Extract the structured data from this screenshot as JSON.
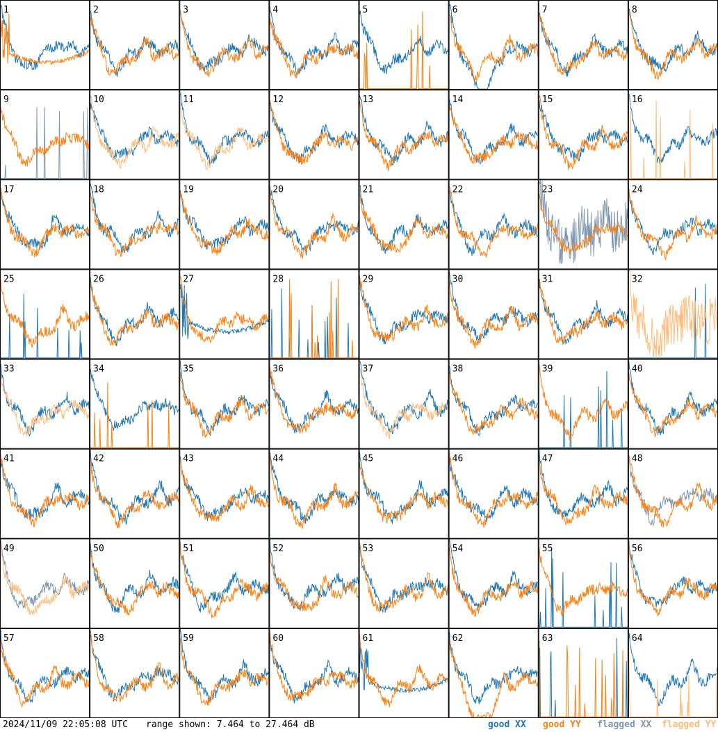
{
  "footer": {
    "timestamp": "2024/11/09 22:05:08 UTC",
    "range_text": "range shown: 7.464 to 27.464 dB",
    "legend": {
      "good_xx": "good XX",
      "good_yy": "good YY",
      "flagged_xx": "flagged XX",
      "flagged_yy": "flagged YY"
    }
  },
  "chart_data": {
    "type": "line",
    "title": "",
    "xlabel": "",
    "ylabel": "",
    "ylim": [
      7.464,
      27.464
    ],
    "grid": false,
    "rows": 8,
    "cols": 8,
    "colors": {
      "good_xx": "#1f77b4",
      "good_yy": "#ff7f0e",
      "flagged_xx": "#7f96b0",
      "flagged_yy": "#ffbb78"
    },
    "panels": [
      {
        "label": "1",
        "xx": "good",
        "yy": "good",
        "yy_mode": "odd"
      },
      {
        "label": "2",
        "xx": "good",
        "yy": "good"
      },
      {
        "label": "3",
        "xx": "good",
        "yy": "good"
      },
      {
        "label": "4",
        "xx": "good",
        "yy": "good"
      },
      {
        "label": "5",
        "xx": "good",
        "yy": "good",
        "yy_mode": "spikes"
      },
      {
        "label": "6",
        "xx": "good",
        "yy": "good",
        "xx_mode": "dip"
      },
      {
        "label": "7",
        "xx": "good",
        "yy": "good"
      },
      {
        "label": "8",
        "xx": "good",
        "yy": "good"
      },
      {
        "label": "9",
        "xx": "flagged",
        "yy": "good",
        "xx_mode": "spikes"
      },
      {
        "label": "10",
        "xx": "good",
        "yy": "flagged"
      },
      {
        "label": "11",
        "xx": "good",
        "yy": "flagged"
      },
      {
        "label": "12",
        "xx": "good",
        "yy": "good"
      },
      {
        "label": "13",
        "xx": "good",
        "yy": "good"
      },
      {
        "label": "14",
        "xx": "good",
        "yy": "good"
      },
      {
        "label": "15",
        "xx": "good",
        "yy": "good"
      },
      {
        "label": "16",
        "xx": "good",
        "yy": "flagged",
        "yy_mode": "spikes"
      },
      {
        "label": "17",
        "xx": "good",
        "yy": "good"
      },
      {
        "label": "18",
        "xx": "good",
        "yy": "good"
      },
      {
        "label": "19",
        "xx": "good",
        "yy": "good"
      },
      {
        "label": "20",
        "xx": "good",
        "yy": "good"
      },
      {
        "label": "21",
        "xx": "good",
        "yy": "good"
      },
      {
        "label": "22",
        "xx": "good",
        "yy": "good"
      },
      {
        "label": "23",
        "xx": "flagged",
        "yy": "good",
        "xx_mode": "noisy"
      },
      {
        "label": "24",
        "xx": "good",
        "yy": "good"
      },
      {
        "label": "25",
        "xx": "good",
        "yy": "good",
        "xx_mode": "spikes"
      },
      {
        "label": "26",
        "xx": "good",
        "yy": "good"
      },
      {
        "label": "27",
        "xx": "good",
        "yy": "good",
        "xx_mode": "odd"
      },
      {
        "label": "28",
        "xx": "good",
        "yy": "good",
        "xx_mode": "spikes",
        "yy_mode": "spikes"
      },
      {
        "label": "29",
        "xx": "good",
        "yy": "good"
      },
      {
        "label": "30",
        "xx": "good",
        "yy": "good"
      },
      {
        "label": "31",
        "xx": "good",
        "yy": "good"
      },
      {
        "label": "32",
        "xx": "good",
        "yy": "flagged",
        "xx_mode": "spikes",
        "yy_mode": "noisy"
      },
      {
        "label": "33",
        "xx": "good",
        "yy": "flagged"
      },
      {
        "label": "34",
        "xx": "good",
        "yy": "good",
        "yy_mode": "spikes"
      },
      {
        "label": "35",
        "xx": "good",
        "yy": "good"
      },
      {
        "label": "36",
        "xx": "good",
        "yy": "good"
      },
      {
        "label": "37",
        "xx": "good",
        "yy": "flagged"
      },
      {
        "label": "38",
        "xx": "good",
        "yy": "good"
      },
      {
        "label": "39",
        "xx": "good",
        "yy": "good",
        "xx_mode": "spikes"
      },
      {
        "label": "40",
        "xx": "good",
        "yy": "good"
      },
      {
        "label": "41",
        "xx": "good",
        "yy": "good"
      },
      {
        "label": "42",
        "xx": "good",
        "yy": "good"
      },
      {
        "label": "43",
        "xx": "good",
        "yy": "good"
      },
      {
        "label": "44",
        "xx": "good",
        "yy": "good"
      },
      {
        "label": "45",
        "xx": "good",
        "yy": "good"
      },
      {
        "label": "46",
        "xx": "good",
        "yy": "good"
      },
      {
        "label": "47",
        "xx": "good",
        "yy": "good"
      },
      {
        "label": "48",
        "xx": "flagged",
        "yy": "good"
      },
      {
        "label": "49",
        "xx": "flagged",
        "yy": "flagged"
      },
      {
        "label": "50",
        "xx": "good",
        "yy": "good"
      },
      {
        "label": "51",
        "xx": "good",
        "yy": "good"
      },
      {
        "label": "52",
        "xx": "good",
        "yy": "good"
      },
      {
        "label": "53",
        "xx": "good",
        "yy": "good"
      },
      {
        "label": "54",
        "xx": "good",
        "yy": "good"
      },
      {
        "label": "55",
        "xx": "good",
        "yy": "good",
        "xx_mode": "spikes"
      },
      {
        "label": "56",
        "xx": "good",
        "yy": "good"
      },
      {
        "label": "57",
        "xx": "good",
        "yy": "good"
      },
      {
        "label": "58",
        "xx": "good",
        "yy": "good"
      },
      {
        "label": "59",
        "xx": "good",
        "yy": "good"
      },
      {
        "label": "60",
        "xx": "good",
        "yy": "good"
      },
      {
        "label": "61",
        "xx": "good",
        "yy": "good",
        "xx_mode": "odd"
      },
      {
        "label": "62",
        "xx": "good",
        "yy": "good",
        "yy_mode": "dip"
      },
      {
        "label": "63",
        "xx": "good",
        "yy": "good",
        "xx_mode": "spikes",
        "yy_mode": "spikes"
      },
      {
        "label": "64",
        "xx": "good",
        "yy": "flagged",
        "yy_mode": "spikes"
      }
    ]
  }
}
